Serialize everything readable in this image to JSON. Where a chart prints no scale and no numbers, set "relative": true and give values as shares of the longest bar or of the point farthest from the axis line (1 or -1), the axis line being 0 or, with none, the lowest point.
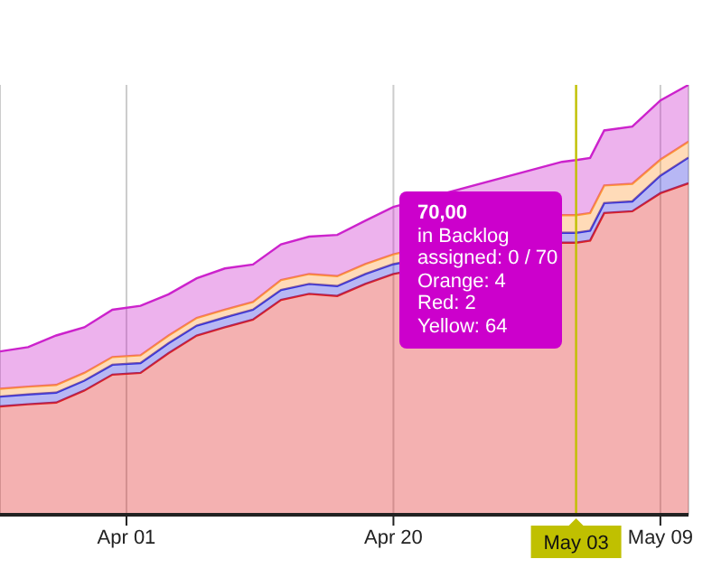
{
  "chart_data": {
    "type": "area",
    "stacked": true,
    "relative": true,
    "grid": "x",
    "x": [
      "--03-23",
      "--03-25",
      "--03-27",
      "--03-29",
      "--03-31",
      "--04-02",
      "--04-04",
      "--04-06",
      "--04-08",
      "--04-10",
      "--04-12",
      "--04-14",
      "--04-16",
      "--04-18",
      "--04-20",
      "--04-22",
      "--04-24",
      "--04-26",
      "--04-28",
      "--04-30",
      "--05-02",
      "--05-03",
      "--05-04",
      "--05-05",
      "--05-07",
      "--05-09",
      "--05-11"
    ],
    "xlim": [
      "--03-23",
      "--05-11"
    ],
    "xticks": [
      {
        "value": "--04-01",
        "label": "Apr 01"
      },
      {
        "value": "--04-20",
        "label": "Apr 20"
      },
      {
        "value": "--05-09",
        "label": "May 09"
      }
    ],
    "series": [
      {
        "color": "#e02020",
        "values": [
          0.252,
          0.257,
          0.261,
          0.289,
          0.326,
          0.33,
          0.376,
          0.417,
          0.436,
          0.454,
          0.5,
          0.514,
          0.509,
          0.537,
          0.56,
          null,
          null,
          null,
          null,
          null,
          0.633,
          0.633,
          0.638,
          0.702,
          0.706,
          0.748,
          0.771
        ]
      },
      {
        "color": "#3030e0",
        "values": [
          0.023,
          0.023,
          0.023,
          0.023,
          0.023,
          0.023,
          0.023,
          0.023,
          0.023,
          0.023,
          0.023,
          0.023,
          0.023,
          0.023,
          0.023,
          null,
          null,
          null,
          null,
          null,
          0.023,
          0.023,
          0.023,
          0.023,
          0.023,
          0.041,
          0.06
        ]
      },
      {
        "color": "#ff9933",
        "values": [
          0.018,
          0.018,
          0.018,
          0.018,
          0.018,
          0.018,
          0.018,
          0.018,
          0.018,
          0.018,
          0.023,
          0.023,
          0.023,
          0.023,
          0.023,
          null,
          null,
          null,
          null,
          null,
          0.041,
          0.041,
          0.041,
          0.041,
          0.041,
          0.037,
          0.037
        ]
      },
      {
        "color": "#cc22cc",
        "values": [
          0.087,
          0.092,
          0.115,
          0.106,
          0.11,
          0.115,
          0.096,
          0.092,
          0.096,
          0.087,
          0.083,
          0.087,
          0.096,
          0.101,
          0.11,
          null,
          null,
          null,
          null,
          null,
          0.124,
          0.128,
          0.128,
          0.128,
          0.133,
          0.138,
          0.132
        ]
      }
    ],
    "ref_lines": [
      {
        "axis": "x",
        "value": "--05-03",
        "label": "May 03",
        "color": "#c0c000"
      }
    ],
    "annotations": [
      "70,00",
      "in Backlog",
      "assigned: 0 / 70",
      "Orange: 4",
      "Red: 2",
      "Yellow: 64"
    ]
  }
}
